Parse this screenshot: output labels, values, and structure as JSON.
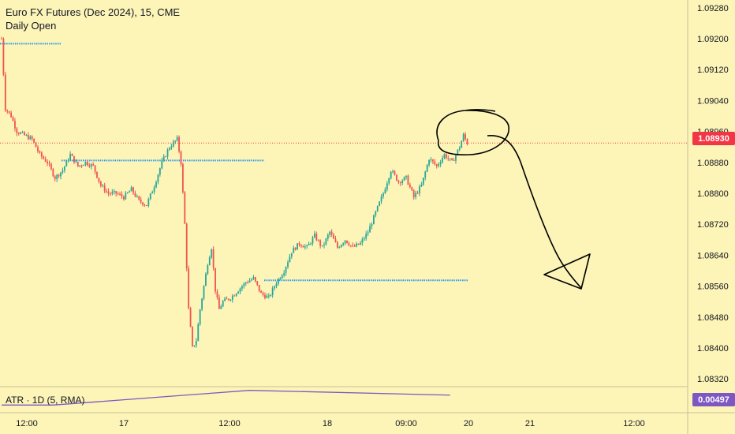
{
  "legend": {
    "title": "Euro FX Futures (Dec 2024), 15, CME",
    "indicator": "Daily Open"
  },
  "atr": {
    "label": "ATR · 1D (5, RMA)",
    "value": "0.00497"
  },
  "current_price": "1.08930",
  "colors": {
    "background": "#fdf4b7",
    "up": "#26a69a",
    "down": "#ef5350",
    "level_line": "#2196f3",
    "atr_line": "#7e57c2",
    "price_badge": "#f23645",
    "atr_badge": "#7e57c2",
    "drawing": "#000000"
  },
  "chart_data": {
    "type": "candlestick",
    "title": "Euro FX Futures (Dec 2024), 15, CME",
    "y_axis": {
      "ticks": [
        "1.09280",
        "1.09200",
        "1.09120",
        "1.09040",
        "1.08960",
        "1.08880",
        "1.08800",
        "1.08720",
        "1.08640",
        "1.08560",
        "1.08480",
        "1.08400",
        "1.08320"
      ],
      "ylim": [
        1.083,
        1.093
      ],
      "position": "right"
    },
    "x_axis": {
      "ticks": [
        "12:00",
        "17",
        "12:00",
        "18",
        "09:00",
        "20",
        "21",
        "12:00"
      ]
    },
    "daily_open_levels": [
      {
        "price": 1.09187,
        "from": "12:00 day 16",
        "to": "17"
      },
      {
        "price": 1.08885,
        "from": "17",
        "to": "18"
      },
      {
        "price": 1.08575,
        "from": "18",
        "to": "20"
      }
    ],
    "current_price_line": 1.0893,
    "price_path": [
      [
        0,
        1.092
      ],
      [
        2,
        1.0902
      ],
      [
        5,
        1.09
      ],
      [
        8,
        1.0896
      ],
      [
        12,
        1.0895
      ],
      [
        16,
        1.0894
      ],
      [
        20,
        1.089
      ],
      [
        24,
        1.0888
      ],
      [
        28,
        1.0884
      ],
      [
        32,
        1.0886
      ],
      [
        36,
        1.089
      ],
      [
        40,
        1.0887
      ],
      [
        44,
        1.0888
      ],
      [
        48,
        1.0887
      ],
      [
        52,
        1.0882
      ],
      [
        56,
        1.088
      ],
      [
        60,
        1.088
      ],
      [
        64,
        1.0879
      ],
      [
        68,
        1.0881
      ],
      [
        72,
        1.0878
      ],
      [
        76,
        1.0877
      ],
      [
        80,
        1.0882
      ],
      [
        84,
        1.0888
      ],
      [
        88,
        1.0892
      ],
      [
        92,
        1.0894
      ],
      [
        94,
        1.0888
      ],
      [
        96,
        1.0872
      ],
      [
        98,
        1.085
      ],
      [
        100,
        1.084
      ],
      [
        102,
        1.0842
      ],
      [
        104,
        1.085
      ],
      [
        106,
        1.0856
      ],
      [
        108,
        1.0862
      ],
      [
        110,
        1.0866
      ],
      [
        112,
        1.0855
      ],
      [
        114,
        1.085
      ],
      [
        116,
        1.0852
      ],
      [
        120,
        1.0853
      ],
      [
        124,
        1.0855
      ],
      [
        128,
        1.0857
      ],
      [
        132,
        1.0858
      ],
      [
        136,
        1.0854
      ],
      [
        140,
        1.0853
      ],
      [
        144,
        1.0857
      ],
      [
        148,
        1.086
      ],
      [
        152,
        1.0865
      ],
      [
        156,
        1.0867
      ],
      [
        160,
        1.0866
      ],
      [
        164,
        1.0869
      ],
      [
        168,
        1.0866
      ],
      [
        172,
        1.087
      ],
      [
        176,
        1.0866
      ],
      [
        180,
        1.0868
      ],
      [
        184,
        1.0866
      ],
      [
        188,
        1.0867
      ],
      [
        192,
        1.087
      ],
      [
        196,
        1.0875
      ],
      [
        200,
        1.088
      ],
      [
        204,
        1.0886
      ],
      [
        208,
        1.0883
      ],
      [
        212,
        1.0884
      ],
      [
        216,
        1.0879
      ],
      [
        220,
        1.0882
      ],
      [
        224,
        1.0889
      ],
      [
        228,
        1.0887
      ],
      [
        232,
        1.089
      ],
      [
        236,
        1.0888
      ],
      [
        240,
        1.0892
      ],
      [
        242,
        1.0895
      ],
      [
        244,
        1.0893
      ]
    ],
    "atr_series": [
      {
        "x": 0,
        "value": 0.0047
      },
      {
        "x": 27,
        "value": 0.0047
      },
      {
        "x": 130,
        "value": 0.0051
      },
      {
        "x": 235,
        "value": 0.00497
      }
    ]
  }
}
